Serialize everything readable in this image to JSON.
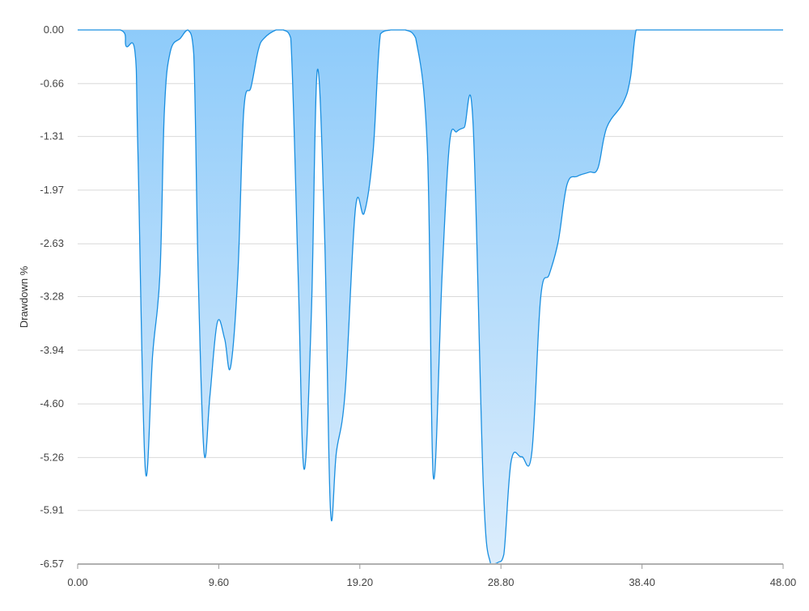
{
  "chart_data": {
    "type": "area",
    "title": "",
    "xlabel": "",
    "ylabel": "Drawdown %",
    "xlim": [
      0,
      48
    ],
    "ylim": [
      -6.57,
      0
    ],
    "x_ticks": [
      "0.00",
      "9.60",
      "19.20",
      "28.80",
      "38.40",
      "48.00"
    ],
    "y_ticks": [
      "0.00",
      "-0.66",
      "-1.31",
      "-1.97",
      "-2.63",
      "-3.28",
      "-3.94",
      "-4.60",
      "-5.26",
      "-5.91",
      "-6.57"
    ],
    "grid": true,
    "colors": {
      "line": "#1a8fe0",
      "fill_top": "#8ecbfa",
      "fill_bottom": "#dcedfc",
      "grid": "#d9d9d9",
      "axis": "#b0b0b0"
    },
    "series": [
      {
        "x": [
          0,
          2.9,
          3.3,
          3.9,
          4.1,
          4.6,
          5.1,
          5.6,
          5.9,
          6.3,
          7.0,
          7.5,
          7.9,
          8.2,
          8.6,
          9.0,
          9.5,
          10.0,
          10.4,
          10.9,
          11.3,
          11.8,
          12.3,
          12.7,
          13.5,
          14.0,
          14.5,
          15.0,
          15.4,
          15.9,
          16.3,
          16.8,
          17.2,
          17.6,
          18.2,
          18.9,
          19.5,
          20.1,
          20.6,
          21.3,
          21.7,
          22.3,
          23.0,
          23.8,
          24.2,
          24.8,
          25.3,
          25.8,
          26.3,
          26.9,
          27.6,
          28.1,
          28.6,
          29.0,
          29.5,
          30.2,
          30.9,
          31.5,
          32.1,
          32.7,
          33.3,
          34.0,
          34.8,
          35.4,
          36.0,
          37.1,
          37.6,
          38.0,
          38.5,
          39.0,
          40.0,
          48.0
        ],
        "y": [
          0.0,
          0.0,
          -0.2,
          -0.27,
          -1.5,
          -5.4,
          -4.0,
          -3.0,
          -1.0,
          -0.27,
          -0.1,
          0.0,
          -0.3,
          -3.0,
          -5.2,
          -4.5,
          -3.6,
          -3.8,
          -4.15,
          -3.0,
          -1.0,
          -0.7,
          -0.24,
          -0.1,
          0.0,
          0.0,
          -0.1,
          -3.0,
          -5.4,
          -3.5,
          -0.5,
          -2.5,
          -5.9,
          -5.2,
          -4.45,
          -2.2,
          -2.25,
          -1.5,
          -0.05,
          0.0,
          0.0,
          0.0,
          -0.1,
          -1.5,
          -5.5,
          -3.0,
          -1.4,
          -1.25,
          -1.2,
          -1.14,
          -5.6,
          -6.57,
          -6.55,
          -6.45,
          -5.3,
          -5.25,
          -5.2,
          -3.3,
          -3.0,
          -2.6,
          -1.9,
          -1.8,
          -1.75,
          -1.7,
          -1.2,
          -0.9,
          -0.6,
          0.0,
          0.0,
          0.0,
          0.0,
          0.0
        ]
      }
    ]
  }
}
